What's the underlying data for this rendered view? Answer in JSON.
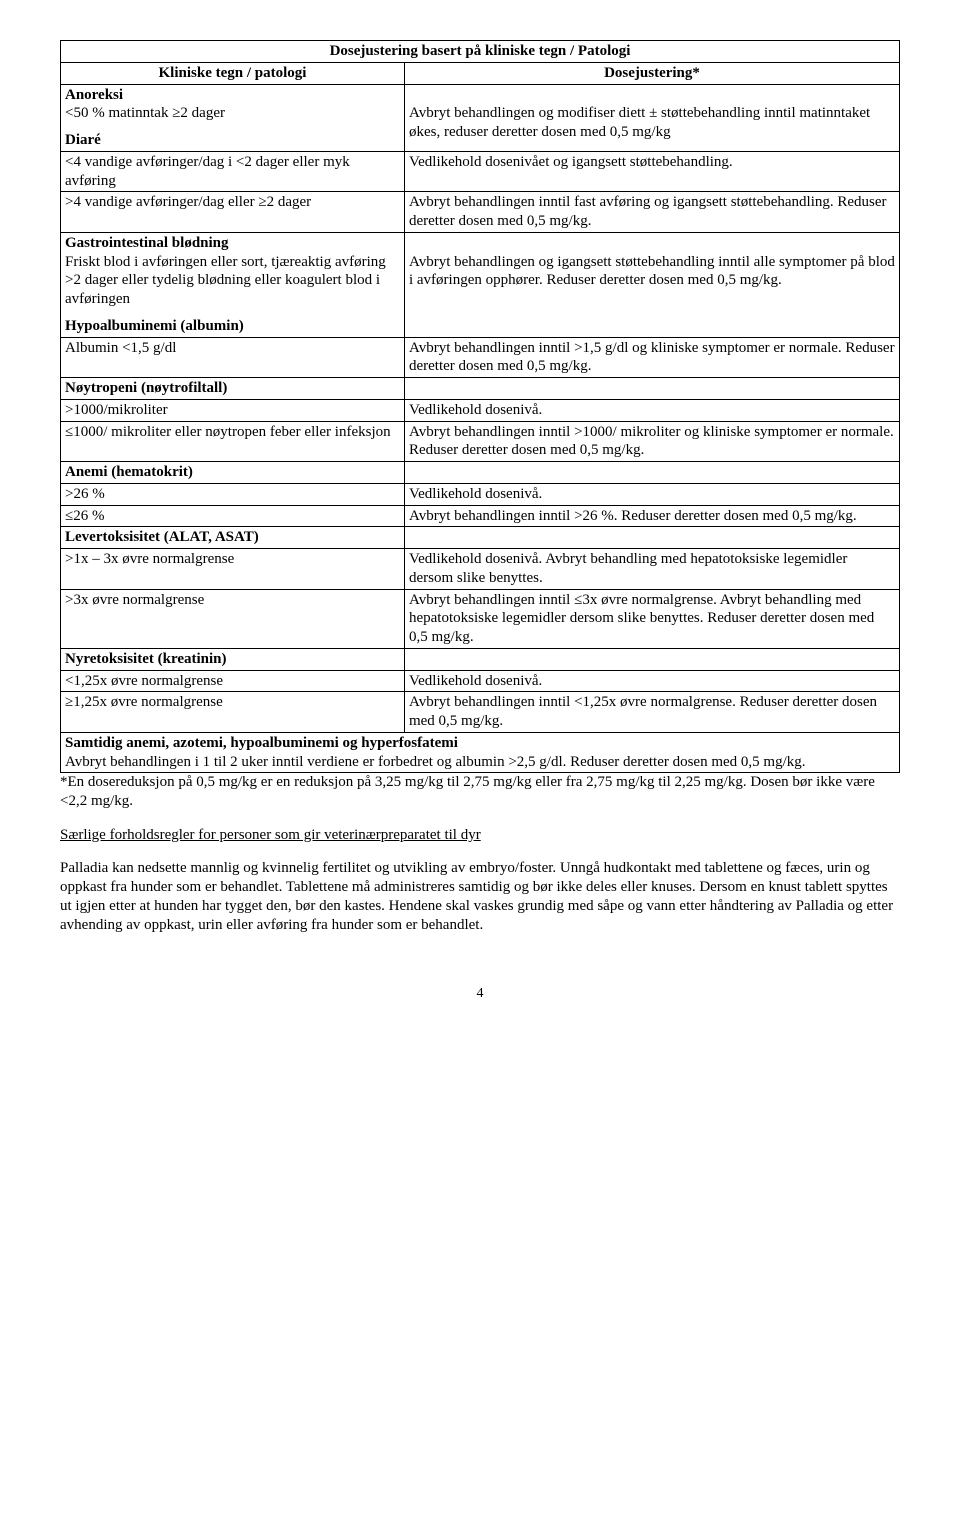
{
  "table": {
    "title": "Dosejustering basert på kliniske tegn / Patologi",
    "col_left": "Kliniske tegn / patologi",
    "col_right": "Dosejustering*",
    "sections": {
      "anoreksi": {
        "hdr": "Anoreksi",
        "r1_l": "<50 % matinntak ≥2 dager",
        "r1_r": "Avbryt behandlingen og modifiser diett ± støttebehandling inntil matinntaket økes, reduser deretter dosen med 0,5 mg/kg"
      },
      "diare": {
        "hdr": "Diaré",
        "r1_l": "<4 vandige avføringer/dag i <2 dager eller myk avføring",
        "r1_r": "Vedlikehold dosenivået og igangsett støttebehandling.",
        "r2_l": ">4 vandige avføringer/dag eller ≥2 dager",
        "r2_r": "Avbryt behandlingen inntil fast avføring og igangsett støttebehandling. Reduser deretter dosen med 0,5 mg/kg."
      },
      "gi": {
        "hdr": "Gastrointestinal blødning",
        "r1_l": "Friskt blod i avføringen eller sort, tjæreaktig avføring >2 dager eller tydelig blødning eller koagulert blod i avføringen",
        "r1_r": "Avbryt behandlingen og igangsett støttebehandling inntil alle symptomer på blod i avføringen opphører. Reduser deretter dosen med 0,5 mg/kg."
      },
      "hypo": {
        "hdr": "Hypoalbuminemi (albumin)",
        "r1_l": "Albumin <1,5 g/dl",
        "r1_r": "Avbryt behandlingen inntil >1,5 g/dl og kliniske symptomer er normale. Reduser deretter dosen med 0,5 mg/kg."
      },
      "noy": {
        "hdr": "Nøytropeni (nøytrofiltall)",
        "r1_l": ">1000/mikroliter",
        "r1_r": "Vedlikehold dosenivå.",
        "r2_l": "≤1000/ mikroliter eller nøytropen feber eller infeksjon",
        "r2_r": "Avbryt behandlingen inntil >1000/ mikroliter og kliniske symptomer er normale. Reduser deretter dosen med 0,5 mg/kg."
      },
      "anemi": {
        "hdr": "Anemi (hematokrit)",
        "r1_l": ">26 %",
        "r1_r": "Vedlikehold dosenivå.",
        "r2_l": "≤26 %",
        "r2_r": "Avbryt behandlingen inntil >26 %. Reduser deretter dosen med 0,5 mg/kg."
      },
      "lever": {
        "hdr": "Levertoksisitet (ALAT, ASAT)",
        "r1_l": ">1x – 3x øvre normalgrense",
        "r1_r": "Vedlikehold dosenivå. Avbryt behandling med hepatotoksiske legemidler dersom slike benyttes.",
        "r2_l": ">3x øvre normalgrense",
        "r2_r": "Avbryt behandlingen inntil ≤3x øvre normalgrense. Avbryt behandling med hepatotoksiske legemidler dersom slike benyttes. Reduser deretter dosen med 0,5 mg/kg."
      },
      "nyre": {
        "hdr": "Nyretoksisitet (kreatinin)",
        "r1_l": "<1,25x øvre normalgrense",
        "r1_r": "Vedlikehold dosenivå.",
        "r2_l": "≥1,25x øvre normalgrense",
        "r2_r": "Avbryt behandlingen inntil <1,25x øvre normalgrense. Reduser deretter dosen med 0,5 mg/kg."
      },
      "samtidig": {
        "hdr": "Samtidig anemi, azotemi, hypoalbuminemi og hyperfosfatemi",
        "body": "Avbryt behandlingen i 1 til 2 uker inntil verdiene er forbedret og albumin >2,5 g/dl. Reduser deretter dosen med 0,5 mg/kg."
      }
    }
  },
  "foot": {
    "note": "*En dosereduksjon på 0,5 mg/kg er en reduksjon på 3,25 mg/kg til 2,75 mg/kg eller fra 2,75 mg/kg til 2,25 mg/kg.  Dosen bør ikke være <2,2 mg/kg.",
    "underline": "Særlige forholdsregler for personer som gir veterinærpreparatet til dyr",
    "para": "Palladia kan nedsette mannlig og kvinnelig fertilitet og utvikling av embryo/foster. Unngå hudkontakt med tablettene og fæces, urin og oppkast fra hunder som er behandlet. Tablettene må administreres samtidig og bør ikke deles eller knuses. Dersom en knust tablett spyttes ut igjen etter at hunden har tygget den, bør den kastes. Hendene skal vaskes grundig med såpe og vann etter håndtering av Palladia og etter avhending av oppkast, urin eller avføring fra hunder som er behandlet."
  },
  "page": "4"
}
